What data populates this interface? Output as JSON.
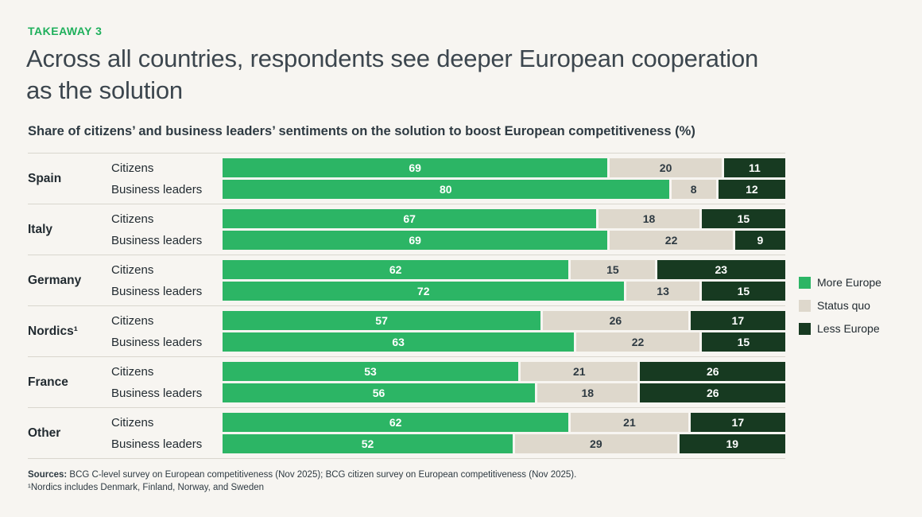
{
  "page": {
    "background": "#f7f5f1"
  },
  "header": {
    "eyebrow": "TAKEAWAY 3",
    "title_lines": [
      "Across all countries, respondents see deeper European cooperation",
      "as the solution"
    ],
    "subtitle": "Share of citizens’ and business leaders’ sentiments on the solution to boost European competitiveness (%)"
  },
  "chart_data": {
    "type": "bar",
    "stacked": true,
    "orientation": "horizontal",
    "unit": "%",
    "xlim": [
      0,
      100
    ],
    "segments": [
      "More Europe",
      "Status quo",
      "Less Europe"
    ],
    "segment_colors": [
      "#2cb565",
      "#ded8cc",
      "#173a21"
    ],
    "legend_position": "right",
    "groups": [
      {
        "country": "Spain",
        "rows": [
          {
            "label": "Citizens",
            "values": [
              69,
              20,
              11
            ]
          },
          {
            "label": "Business leaders",
            "values": [
              80,
              8,
              12
            ]
          }
        ]
      },
      {
        "country": "Italy",
        "rows": [
          {
            "label": "Citizens",
            "values": [
              67,
              18,
              15
            ]
          },
          {
            "label": "Business leaders",
            "values": [
              69,
              22,
              9
            ]
          }
        ]
      },
      {
        "country": "Germany",
        "rows": [
          {
            "label": "Citizens",
            "values": [
              62,
              15,
              23
            ]
          },
          {
            "label": "Business leaders",
            "values": [
              72,
              13,
              15
            ]
          }
        ]
      },
      {
        "country": "Nordics¹",
        "rows": [
          {
            "label": "Citizens",
            "values": [
              57,
              26,
              17
            ]
          },
          {
            "label": "Business leaders",
            "values": [
              63,
              22,
              15
            ]
          }
        ]
      },
      {
        "country": "France",
        "rows": [
          {
            "label": "Citizens",
            "values": [
              53,
              21,
              26
            ]
          },
          {
            "label": "Business leaders",
            "values": [
              56,
              18,
              26
            ]
          }
        ]
      },
      {
        "country": "Other",
        "rows": [
          {
            "label": "Citizens",
            "values": [
              62,
              21,
              17
            ]
          },
          {
            "label": "Business leaders",
            "values": [
              52,
              29,
              19
            ]
          }
        ]
      }
    ],
    "legend": [
      {
        "label": "More Europe",
        "color": "#2cb565"
      },
      {
        "label": "Status quo",
        "color": "#ded8cc"
      },
      {
        "label": "Less Europe",
        "color": "#173a21"
      }
    ]
  },
  "footer": {
    "sources_label": "Sources:",
    "sources_text": "BCG C-level survey on European competitiveness (Nov 2025); BCG citizen survey on European competitiveness (Nov 2025).",
    "footnote": "¹Nordics includes Denmark, Finland, Norway, and Sweden"
  }
}
